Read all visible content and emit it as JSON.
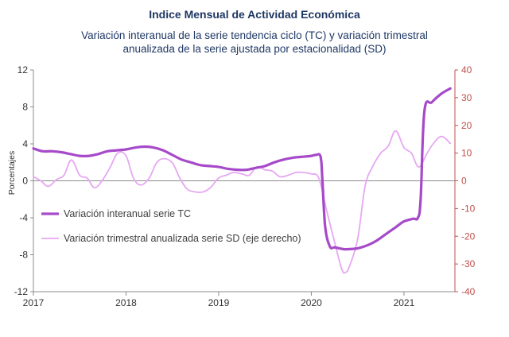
{
  "header": {
    "title": "Indice Mensual de  Actividad Económica",
    "subtitle_line1": "Variación interanual de la serie tendencia ciclo (TC) y variación trimestral",
    "subtitle_line2": "anualizada de la serie ajustada por estacionalidad (SD)"
  },
  "chart_data": {
    "type": "line",
    "ylabel": "Porcentajes",
    "xlim": [
      2017,
      2021.55
    ],
    "ylim": [
      -12,
      12
    ],
    "y2lim": [
      -40,
      40
    ],
    "x_ticks": [
      "2017",
      "2018",
      "2019",
      "2020",
      "2021"
    ],
    "y_ticks": [
      "12",
      "8",
      "4",
      "0",
      "-4",
      "-8",
      "-12"
    ],
    "y2_ticks": [
      "40",
      "30",
      "20",
      "10",
      "0",
      "-10",
      "-20",
      "-30",
      "-40"
    ],
    "legend_position": "center-left",
    "grid": false,
    "colors": {
      "tc": "#a64ac9",
      "sd": "#e6a8f2",
      "right_axis": "#c0504d",
      "title": "#1f3864"
    },
    "series": [
      {
        "name": "Variación interanual serie TC",
        "axis": "left",
        "x": [
          2017.0,
          2017.1,
          2017.2,
          2017.3,
          2017.4,
          2017.5,
          2017.6,
          2017.7,
          2017.8,
          2017.9,
          2018.0,
          2018.1,
          2018.2,
          2018.3,
          2018.4,
          2018.5,
          2018.6,
          2018.7,
          2018.8,
          2018.9,
          2019.0,
          2019.1,
          2019.2,
          2019.3,
          2019.4,
          2019.5,
          2019.6,
          2019.7,
          2019.8,
          2019.9,
          2020.0,
          2020.05,
          2020.1,
          2020.12,
          2020.15,
          2020.2,
          2020.25,
          2020.3,
          2020.35,
          2020.4,
          2020.5,
          2020.6,
          2020.7,
          2020.8,
          2020.9,
          2021.0,
          2021.1,
          2021.15,
          2021.18,
          2021.22,
          2021.3,
          2021.4,
          2021.5
        ],
        "y": [
          3.5,
          3.2,
          3.2,
          3.1,
          2.9,
          2.7,
          2.7,
          2.9,
          3.2,
          3.3,
          3.4,
          3.6,
          3.7,
          3.6,
          3.3,
          2.8,
          2.3,
          2.0,
          1.7,
          1.6,
          1.5,
          1.3,
          1.2,
          1.2,
          1.4,
          1.6,
          2.0,
          2.3,
          2.5,
          2.6,
          2.7,
          2.8,
          2.6,
          0.0,
          -5.0,
          -7.1,
          -7.2,
          -7.3,
          -7.4,
          -7.4,
          -7.3,
          -7.0,
          -6.5,
          -5.8,
          -5.1,
          -4.4,
          -4.1,
          -4.0,
          -2.0,
          7.5,
          8.5,
          9.4,
          10.0
        ]
      },
      {
        "name": "Variación trimestral anualizada serie SD (eje derecho)",
        "axis": "right",
        "x": [
          2017.0,
          2017.08,
          2017.16,
          2017.25,
          2017.33,
          2017.41,
          2017.5,
          2017.58,
          2017.66,
          2017.75,
          2017.83,
          2017.91,
          2018.0,
          2018.08,
          2018.16,
          2018.25,
          2018.33,
          2018.41,
          2018.5,
          2018.58,
          2018.66,
          2018.75,
          2018.83,
          2018.91,
          2019.0,
          2019.08,
          2019.16,
          2019.25,
          2019.33,
          2019.41,
          2019.5,
          2019.58,
          2019.66,
          2019.75,
          2019.83,
          2019.91,
          2020.0,
          2020.08,
          2020.16,
          2020.25,
          2020.33,
          2020.37,
          2020.41,
          2020.5,
          2020.58,
          2020.66,
          2020.75,
          2020.83,
          2020.91,
          2021.0,
          2021.08,
          2021.16,
          2021.25,
          2021.33,
          2021.41,
          2021.5
        ],
        "y": [
          1.5,
          0.0,
          -2.0,
          0.5,
          2.0,
          7.5,
          2.0,
          1.0,
          -2.5,
          0.5,
          5.0,
          10.0,
          9.0,
          1.0,
          -1.5,
          1.0,
          6.5,
          8.0,
          6.5,
          1.0,
          -3.0,
          -4.0,
          -4.0,
          -2.5,
          1.0,
          2.0,
          3.0,
          2.5,
          2.0,
          5.0,
          4.0,
          3.5,
          1.5,
          2.0,
          3.0,
          3.0,
          2.5,
          1.0,
          -10.0,
          -22.0,
          -32.0,
          -33.0,
          -31.0,
          -21.0,
          -2.0,
          5.0,
          10.0,
          12.5,
          18.0,
          12.0,
          10.0,
          5.0,
          10.0,
          14.0,
          16.0,
          13.5
        ]
      }
    ]
  }
}
